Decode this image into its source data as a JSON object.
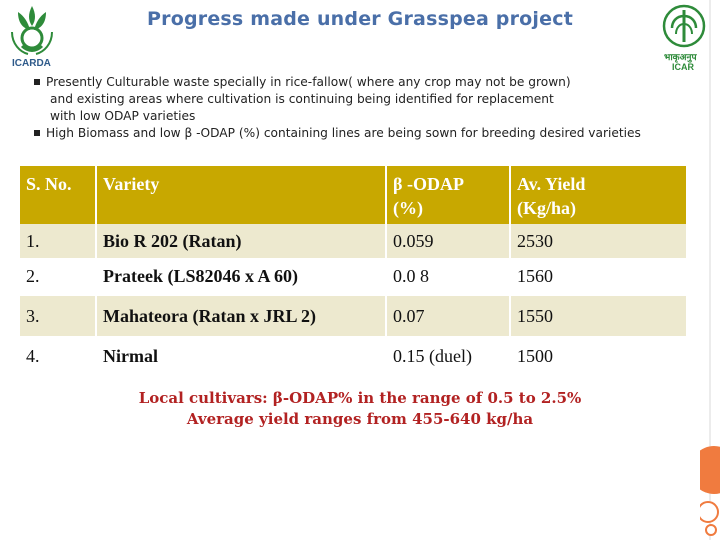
{
  "header": {
    "title": "Progress made under Grasspea project",
    "left_logo_caption": "ICARDA",
    "right_logo_caption_hindi": "भाकृअनुप",
    "right_logo_caption": "ICAR"
  },
  "bullets": [
    {
      "lines": [
        "Presently  Culturable waste specially in rice-fallow( where any crop may not be grown)",
        "and existing areas where cultivation is continuing  being identified  for replacement",
        "with low ODAP varieties"
      ]
    },
    {
      "lines": [
        "High Biomass and low β -ODAP (%) containing  lines are being sown for breeding desired varieties"
      ]
    }
  ],
  "table": {
    "headers": [
      "S. No.",
      "Variety",
      "β -ODAP (%)",
      "Av. Yield (Kg/ha)"
    ],
    "header_lines": {
      "odap_1": "β -ODAP",
      "odap_2": "(%)",
      "yield_1": "Av. Yield",
      "yield_2": "(Kg/ha)"
    },
    "rows": [
      {
        "no": "1.",
        "variety": "Bio R 202 (Ratan)",
        "odap": "0.059",
        "yield": "2530"
      },
      {
        "no": "2.",
        "variety": "Prateek (LS82046 x A 60)",
        "odap": "0.0 8",
        "yield": "1560"
      },
      {
        "no": "3.",
        "variety": "Mahateora (Ratan x JRL 2)",
        "odap": "0.07",
        "yield": "1550"
      },
      {
        "no": "4.",
        "variety": "Nirmal",
        "odap": "0.15 (duel)",
        "yield": "1500"
      }
    ]
  },
  "footer": {
    "line1": "Local cultivars: β-ODAP% in the range of 0.5 to 2.5%",
    "line2": "Average yield ranges from 455-640 kg/ha"
  },
  "colors": {
    "title": "#4a6fa8",
    "table_header": "#c8a800",
    "row_shade": "#ede9cf",
    "footer_text": "#b22222",
    "deco_orange": "#f07b3f"
  }
}
